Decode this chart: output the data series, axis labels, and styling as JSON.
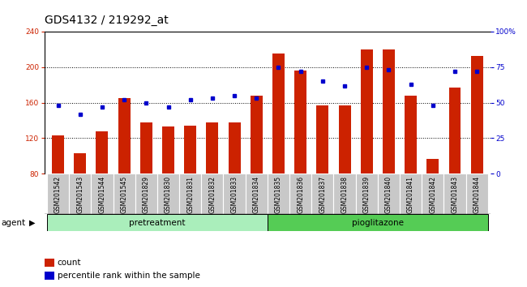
{
  "title": "GDS4132 / 219292_at",
  "samples": [
    "GSM201542",
    "GSM201543",
    "GSM201544",
    "GSM201545",
    "GSM201829",
    "GSM201830",
    "GSM201831",
    "GSM201832",
    "GSM201833",
    "GSM201834",
    "GSM201835",
    "GSM201836",
    "GSM201837",
    "GSM201838",
    "GSM201839",
    "GSM201840",
    "GSM201841",
    "GSM201842",
    "GSM201843",
    "GSM201844"
  ],
  "bar_values": [
    123,
    103,
    128,
    165,
    138,
    133,
    134,
    138,
    138,
    168,
    215,
    196,
    157,
    157,
    220,
    220,
    168,
    97,
    177,
    213
  ],
  "percentile_values": [
    48,
    42,
    47,
    52,
    50,
    47,
    52,
    53,
    55,
    53,
    75,
    72,
    65,
    62,
    75,
    73,
    63,
    48,
    72,
    72
  ],
  "bar_color": "#cc2200",
  "dot_color": "#0000cc",
  "ylim": [
    80,
    240
  ],
  "yticks": [
    80,
    120,
    160,
    200,
    240
  ],
  "right_ylim": [
    0,
    100
  ],
  "right_yticks": [
    0,
    25,
    50,
    75,
    100
  ],
  "right_yticklabels": [
    "0",
    "25",
    "50",
    "75",
    "100%"
  ],
  "pretreatment_samples": 10,
  "total_samples": 20,
  "agent_label": "agent",
  "group1_label": "pretreatment",
  "group2_label": "pioglitazone",
  "legend_bar_label": "count",
  "legend_dot_label": "percentile rank within the sample",
  "bar_color_hex": "#cc2200",
  "dot_color_hex": "#0000cc",
  "tick_area_color": "#c8c8c8",
  "group_color1": "#aaeebb",
  "group_color2": "#55cc55",
  "bar_width": 0.55,
  "title_fontsize": 10,
  "tick_fontsize": 6.5,
  "label_fontsize": 7.5,
  "grid_linestyle": "dotted",
  "grid_color": "#000000",
  "grid_linewidth": 0.7
}
